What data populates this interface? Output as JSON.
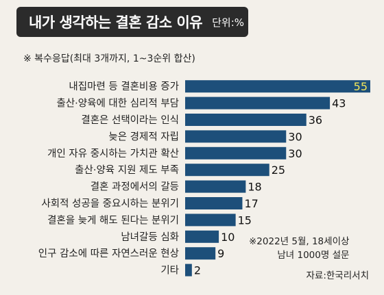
{
  "header": {
    "title": "내가 생각하는 결혼 감소 이유",
    "unit": "단위:%"
  },
  "note": "※ 복수응답(최대 3개까지, 1~3순위 합산)",
  "survey_note": [
    "※2022년 5월, 18세이상",
    "남녀 1000명 설문"
  ],
  "source": "자료:한국리서치",
  "colors": {
    "bar": "#1d4f7a",
    "highlight_label": "#f2e65a",
    "background": "#f3f0ea"
  },
  "chart_data": {
    "type": "bar",
    "orientation": "horizontal",
    "title": "내가 생각하는 결혼 감소 이유",
    "unit": "%",
    "categories": [
      "내집마련 등 결혼비용 증가",
      "출산·양육에 대한 심리적 부담",
      "결혼은 선택이라는 인식",
      "늦은 경제적 자립",
      "개인 자유 중시하는 가치관 확산",
      "출산·양육 지원 제도 부족",
      "결혼 과정에서의 갈등",
      "사회적 성공을 중요시하는 분위기",
      "결혼을 늦게 해도 된다는 분위기",
      "남녀갈등 심화",
      "인구 감소에 따른 자연스러운 현상",
      "기타"
    ],
    "values": [
      55,
      43,
      36,
      30,
      30,
      25,
      18,
      17,
      15,
      10,
      9,
      2
    ],
    "xlim": [
      0,
      55
    ],
    "grid": false
  }
}
